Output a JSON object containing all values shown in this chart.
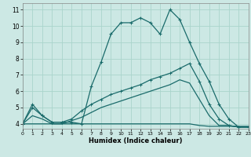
{
  "xlabel": "Humidex (Indice chaleur)",
  "bg_color": "#cce8e4",
  "grid_color": "#aad4cc",
  "line_color": "#1a6b6b",
  "xlim": [
    0,
    23
  ],
  "ylim": [
    3.7,
    11.4
  ],
  "xticks": [
    0,
    1,
    2,
    3,
    4,
    5,
    6,
    7,
    8,
    9,
    10,
    11,
    12,
    13,
    14,
    15,
    16,
    17,
    18,
    19,
    20,
    21,
    22,
    23
  ],
  "yticks": [
    4,
    5,
    6,
    7,
    8,
    9,
    10,
    11
  ],
  "s1_x": [
    0,
    1,
    2,
    3,
    4,
    5,
    6,
    7,
    8,
    9,
    10,
    11,
    12,
    13,
    14,
    15,
    16,
    17,
    18,
    19,
    20,
    21,
    22,
    23
  ],
  "s1_y": [
    4.0,
    5.2,
    4.5,
    4.1,
    4.1,
    4.1,
    4.0,
    6.3,
    7.8,
    9.5,
    10.2,
    10.2,
    10.5,
    10.2,
    9.5,
    11.0,
    10.4,
    9.0,
    7.7,
    6.6,
    5.2,
    4.3,
    3.8,
    3.8
  ],
  "s2_x": [
    0,
    1,
    2,
    3,
    4,
    5,
    6,
    7,
    8,
    9,
    10,
    11,
    12,
    13,
    14,
    15,
    16,
    17,
    18,
    19,
    20,
    21,
    22,
    23
  ],
  "s2_y": [
    4.0,
    5.0,
    4.5,
    4.1,
    4.1,
    4.3,
    4.8,
    5.2,
    5.5,
    5.8,
    6.0,
    6.2,
    6.4,
    6.7,
    6.9,
    7.1,
    7.4,
    7.7,
    6.6,
    5.2,
    4.3,
    3.9,
    3.8,
    3.8
  ],
  "s3_x": [
    0,
    1,
    2,
    3,
    4,
    5,
    6,
    7,
    8,
    9,
    10,
    11,
    12,
    13,
    14,
    15,
    16,
    17,
    18,
    19,
    20,
    21,
    22,
    23
  ],
  "s3_y": [
    4.0,
    4.5,
    4.3,
    4.0,
    4.0,
    4.2,
    4.4,
    4.7,
    5.0,
    5.2,
    5.4,
    5.6,
    5.8,
    6.0,
    6.2,
    6.4,
    6.7,
    6.5,
    5.5,
    4.5,
    3.9,
    3.9,
    3.8,
    3.8
  ],
  "s4_x": [
    0,
    1,
    2,
    3,
    4,
    5,
    6,
    7,
    8,
    9,
    10,
    11,
    12,
    13,
    14,
    15,
    16,
    17,
    18,
    19,
    20,
    21,
    22,
    23
  ],
  "s4_y": [
    4.0,
    4.0,
    4.0,
    4.0,
    4.0,
    4.0,
    4.0,
    4.0,
    4.0,
    4.0,
    4.0,
    4.0,
    4.0,
    4.0,
    4.0,
    4.0,
    4.0,
    4.0,
    3.9,
    3.85,
    3.85,
    3.85,
    3.85,
    3.85
  ]
}
